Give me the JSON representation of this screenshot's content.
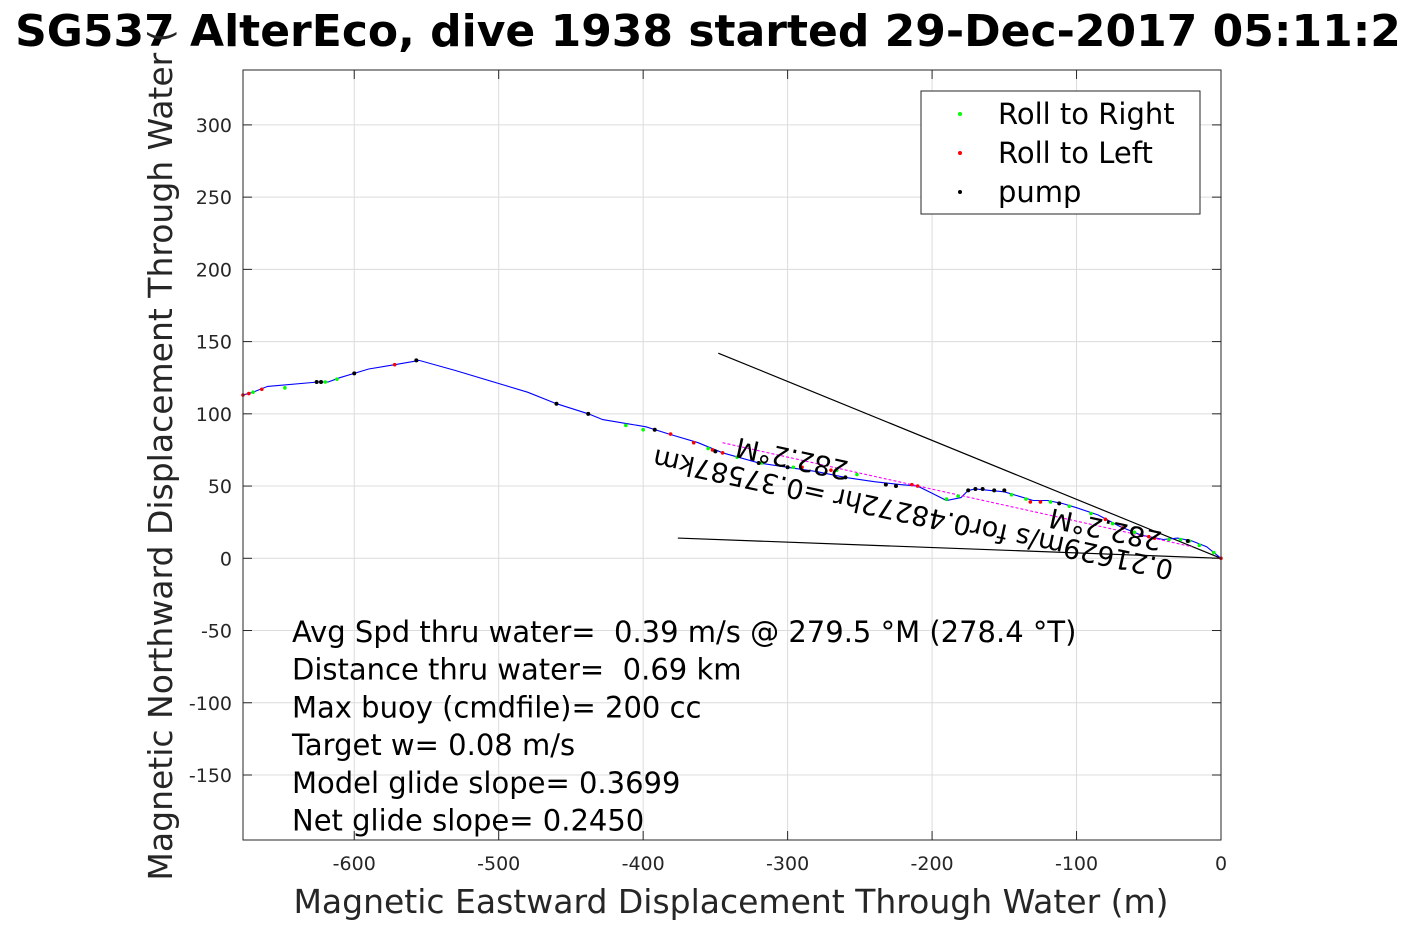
{
  "chart_data": {
    "type": "line",
    "title": "SG537 AlterEco, dive 1938 started 29-Dec-2017 05:11:2",
    "xlabel": "Magnetic Eastward Displacement Through Water (m)",
    "ylabel": "Magnetic Northward Displacement Through Water (",
    "xlim": [
      -677,
      0
    ],
    "ylim": [
      -195,
      338
    ],
    "xticks": [
      -600,
      -500,
      -400,
      -300,
      -200,
      -100,
      0
    ],
    "yticks": [
      -150,
      -100,
      -50,
      0,
      50,
      100,
      150,
      200,
      250,
      300
    ],
    "xtick_labels": [
      "-600",
      "-500",
      "-400",
      "-300",
      "-200",
      "-100",
      "0"
    ],
    "ytick_labels": [
      "-150",
      "-100",
      "-50",
      "0",
      "50",
      "100",
      "150",
      "200",
      "250",
      "300"
    ],
    "grid": true,
    "legend_position": "top-right",
    "legend": [
      {
        "label": "Roll to Right",
        "color": "#00ff00"
      },
      {
        "label": "Roll to Left",
        "color": "#ff0000"
      },
      {
        "label": "pump",
        "color": "#000000"
      }
    ],
    "track_color": "#0000ff",
    "track": {
      "x": [
        0,
        -10,
        -20,
        -30,
        -40,
        -55,
        -70,
        -85,
        -100,
        -110,
        -120,
        -130,
        -140,
        -150,
        -160,
        -170,
        -175,
        -180,
        -190,
        -200,
        -210,
        -222,
        -240,
        -260,
        -280,
        -300,
        -320,
        -345,
        -362,
        -382,
        -398,
        -410,
        -428,
        -438,
        -460,
        -480,
        -500,
        -530,
        -555,
        -572,
        -590,
        -600,
        -610,
        -618,
        -625,
        -660,
        -670,
        -677
      ],
      "y": [
        0,
        8,
        12,
        14,
        13,
        16,
        22,
        30,
        35,
        38,
        40,
        40,
        43,
        46,
        47,
        48,
        47,
        42,
        40,
        45,
        50,
        51,
        53,
        56,
        60,
        63,
        66,
        73,
        80,
        86,
        91,
        93,
        96,
        100,
        107,
        115,
        121,
        130,
        137,
        134,
        131,
        128,
        125,
        122,
        122,
        119,
        115,
        113
      ]
    },
    "roll_right": {
      "x": [
        -5,
        -15,
        -22,
        -28,
        -36,
        -60,
        -75,
        -90,
        -105,
        -118,
        -135,
        -145,
        -182,
        -190,
        -252,
        -266,
        -296,
        -318,
        -335,
        -355,
        -400,
        -412,
        -612,
        -620,
        -648,
        -670
      ],
      "y": [
        4,
        9,
        12,
        13,
        13,
        18,
        24,
        31,
        36,
        39,
        41,
        44,
        43,
        41,
        58,
        61,
        63,
        66,
        70,
        76,
        89,
        92,
        124,
        122,
        118,
        115
      ]
    },
    "roll_left": {
      "x": [
        0,
        -46,
        -50,
        -68,
        -80,
        -125,
        -132,
        -210,
        -214,
        -270,
        -290,
        -345,
        -352,
        -365,
        -381,
        -572,
        -664,
        -673,
        -677
      ],
      "y": [
        0,
        14,
        15,
        21,
        27,
        39,
        39,
        50,
        51,
        61,
        63,
        73,
        75,
        80,
        86,
        134,
        117,
        114,
        113
      ]
    },
    "pump": {
      "x": [
        -23,
        -55,
        -112,
        -150,
        -157,
        -165,
        -170,
        -175,
        -225,
        -232,
        -260,
        -300,
        -320,
        -350,
        -392,
        -438,
        -460,
        -557,
        -600,
        -623,
        -626
      ],
      "y": [
        12,
        16,
        38,
        47,
        47,
        48,
        48,
        47,
        50,
        51,
        56,
        63,
        66,
        74,
        89,
        100,
        107,
        137,
        128,
        122,
        122
      ]
    },
    "magenta_line": {
      "x": [
        -345,
        -20
      ],
      "y": [
        80,
        8
      ]
    },
    "reference_lines": [
      {
        "x": [
          -348,
          0
        ],
        "y": [
          142,
          0
        ]
      },
      {
        "x": [
          -376,
          0
        ],
        "y": [
          14,
          0
        ]
      }
    ],
    "annotations": [
      {
        "text": "0.21629m/s for0.48272hr =0.37587km",
        "x": -32,
        "y": -2,
        "rotation_deg": 192.2
      },
      {
        "text": "282.2°M",
        "x": -257,
        "y": 67,
        "rotation_deg": 192.2
      },
      {
        "text": "282.2°M",
        "x": -40,
        "y": 18,
        "rotation_deg": 192.2
      }
    ],
    "stats": [
      "Avg Spd thru water=  0.39 m/s @ 279.5 °M (278.4 °T)",
      "Distance thru water=  0.69 km",
      "Max buoy (cmdfile)= 200 cc",
      "Target w= 0.08 m/s",
      "Model glide slope= 0.3699",
      "Net glide slope= 0.2450"
    ]
  }
}
